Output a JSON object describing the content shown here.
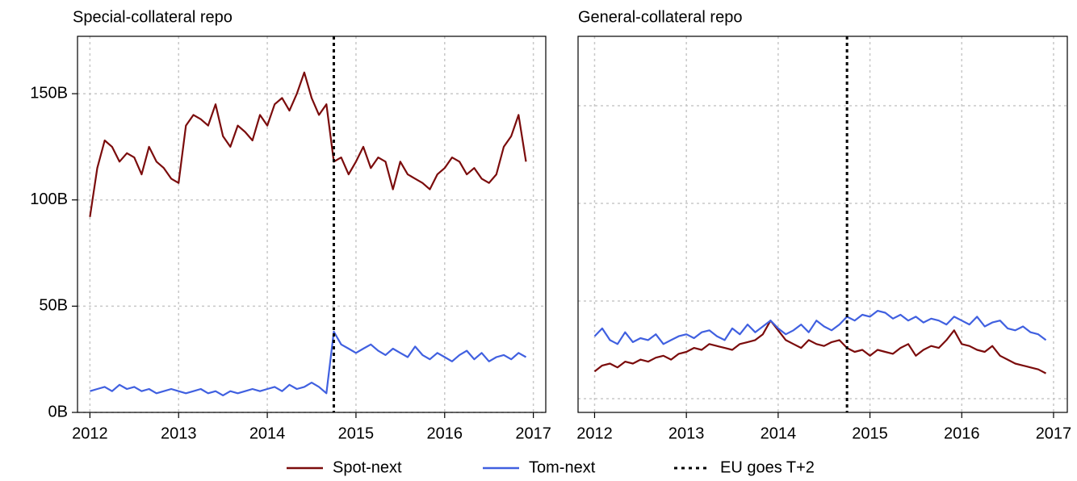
{
  "chart_data": [
    {
      "type": "line",
      "title": "Special-collateral repo",
      "x": [
        2012,
        2012.083,
        2012.167,
        2012.25,
        2012.333,
        2012.417,
        2012.5,
        2012.583,
        2012.667,
        2012.75,
        2012.833,
        2012.917,
        2013,
        2013.083,
        2013.167,
        2013.25,
        2013.333,
        2013.417,
        2013.5,
        2013.583,
        2013.667,
        2013.75,
        2013.833,
        2013.917,
        2014,
        2014.083,
        2014.167,
        2014.25,
        2014.333,
        2014.417,
        2014.5,
        2014.583,
        2014.667,
        2014.75,
        2014.833,
        2014.917,
        2015,
        2015.083,
        2015.167,
        2015.25,
        2015.333,
        2015.417,
        2015.5,
        2015.583,
        2015.667,
        2015.75,
        2015.833,
        2015.917,
        2016,
        2016.083,
        2016.167,
        2016.25,
        2016.333,
        2016.417,
        2016.5,
        2016.583,
        2016.667,
        2016.75,
        2016.833,
        2016.917
      ],
      "xlim": [
        2011.86,
        2017.14
      ],
      "xticks": [
        2012,
        2013,
        2014,
        2015,
        2016,
        2017
      ],
      "ylim": [
        0,
        177
      ],
      "yticks": [
        {
          "value": 0,
          "label": "0B"
        },
        {
          "value": 50,
          "label": "50B"
        },
        {
          "value": 100,
          "label": "100B"
        },
        {
          "value": 150,
          "label": "150B"
        }
      ],
      "grid": true,
      "event": {
        "x": 2014.75,
        "label": "EU goes T+2"
      },
      "series": [
        {
          "name": "Spot-next",
          "color": "#7b0c0c",
          "values": [
            92,
            115,
            128,
            125,
            118,
            122,
            120,
            112,
            125,
            118,
            115,
            110,
            108,
            135,
            140,
            138,
            135,
            145,
            130,
            125,
            135,
            132,
            128,
            140,
            135,
            145,
            148,
            142,
            150,
            160,
            148,
            140,
            145,
            118,
            120,
            112,
            118,
            125,
            115,
            120,
            118,
            105,
            118,
            112,
            110,
            108,
            105,
            112,
            115,
            120,
            118,
            112,
            115,
            110,
            108,
            112,
            125,
            130,
            140,
            118
          ]
        },
        {
          "name": "Tom-next",
          "color": "#4060e0",
          "values": [
            10,
            11,
            12,
            10,
            13,
            11,
            12,
            10,
            11,
            9,
            10,
            11,
            10,
            9,
            10,
            11,
            9,
            10,
            8,
            10,
            9,
            10,
            11,
            10,
            11,
            12,
            10,
            13,
            11,
            12,
            14,
            12,
            9,
            38,
            32,
            30,
            28,
            30,
            32,
            29,
            27,
            30,
            28,
            26,
            31,
            27,
            25,
            28,
            26,
            24,
            27,
            29,
            25,
            28,
            24,
            26,
            27,
            25,
            28,
            26
          ]
        }
      ]
    },
    {
      "type": "line",
      "title": "General-collateral repo",
      "x": [
        2012,
        2012.083,
        2012.167,
        2012.25,
        2012.333,
        2012.417,
        2012.5,
        2012.583,
        2012.667,
        2012.75,
        2012.833,
        2012.917,
        2013,
        2013.083,
        2013.167,
        2013.25,
        2013.333,
        2013.417,
        2013.5,
        2013.583,
        2013.667,
        2013.75,
        2013.833,
        2013.917,
        2014,
        2014.083,
        2014.167,
        2014.25,
        2014.333,
        2014.417,
        2014.5,
        2014.583,
        2014.667,
        2014.75,
        2014.833,
        2014.917,
        2015,
        2015.083,
        2015.167,
        2015.25,
        2015.333,
        2015.417,
        2015.5,
        2015.583,
        2015.667,
        2015.75,
        2015.833,
        2015.917,
        2016,
        2016.083,
        2016.167,
        2016.25,
        2016.333,
        2016.417,
        2016.5,
        2016.583,
        2016.667,
        2016.75,
        2016.833,
        2016.917
      ],
      "xlim": [
        2011.82,
        2017.15
      ],
      "xticks": [
        2012,
        2013,
        2014,
        2015,
        2016,
        2017
      ],
      "ylim": [
        -7,
        185.5
      ],
      "yticks": [
        {
          "value": 0,
          "label": null
        },
        {
          "value": 50,
          "label": null
        },
        {
          "value": 100,
          "label": null
        },
        {
          "value": 150,
          "label": null
        }
      ],
      "grid": true,
      "event": {
        "x": 2014.75
      },
      "series": [
        {
          "color": "#7b0c0c",
          "values": [
            14,
            17,
            18,
            16,
            19,
            18,
            20,
            19,
            21,
            22,
            20,
            23,
            24,
            26,
            25,
            28,
            27,
            26,
            25,
            28,
            29,
            30,
            33,
            40,
            35,
            30,
            28,
            26,
            30,
            28,
            27,
            29,
            30,
            26,
            24,
            25,
            22,
            25,
            24,
            23,
            26,
            28,
            22,
            25,
            27,
            26,
            30,
            35,
            28,
            27,
            25,
            24,
            27,
            22,
            20,
            18,
            17,
            16,
            15,
            13
          ]
        },
        {
          "color": "#4060e0",
          "values": [
            32,
            36,
            30,
            28,
            34,
            29,
            31,
            30,
            33,
            28,
            30,
            32,
            33,
            31,
            34,
            35,
            32,
            30,
            36,
            33,
            38,
            34,
            37,
            40,
            36,
            33,
            35,
            38,
            34,
            40,
            37,
            35,
            38,
            42,
            40,
            43,
            42,
            45,
            44,
            41,
            43,
            40,
            42,
            39,
            41,
            40,
            38,
            42,
            40,
            38,
            42,
            37,
            39,
            40,
            36,
            35,
            37,
            34,
            33,
            30
          ]
        }
      ]
    }
  ]
}
